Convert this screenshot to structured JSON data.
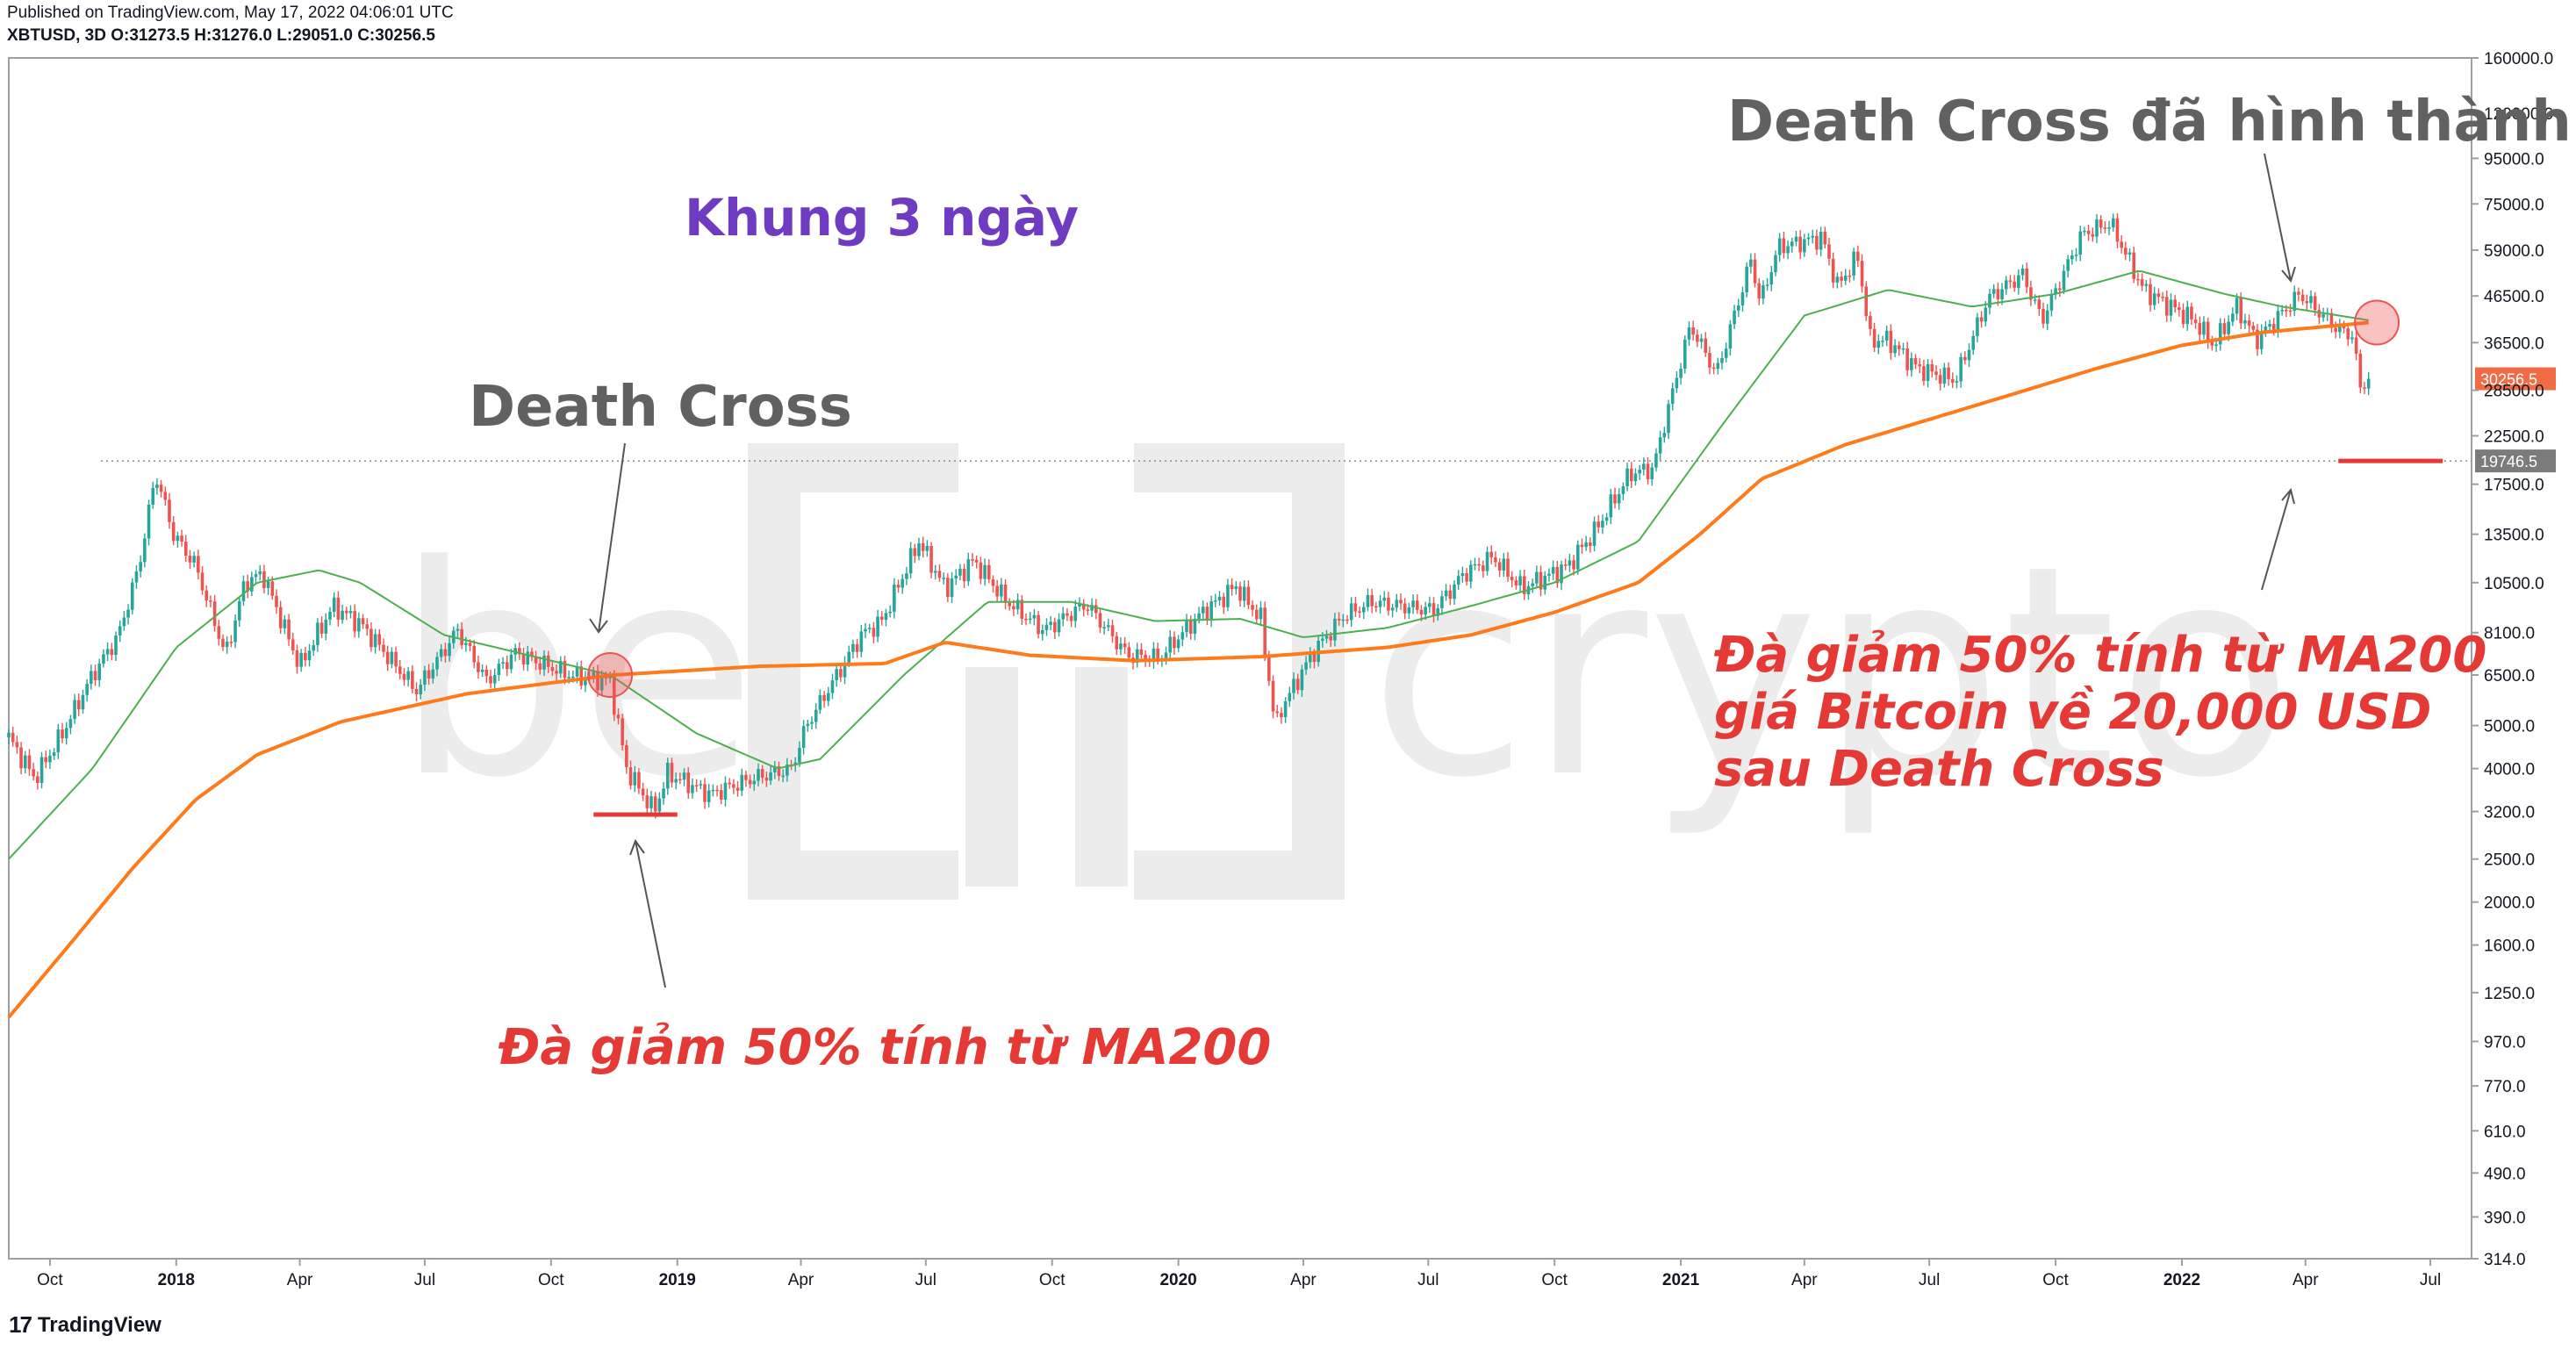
{
  "header": {
    "published": "Published on TradingView.com, May 17, 2022 04:06:01 UTC",
    "ohlc": "XBTUSD, 3D O:31273.5 H:31276.0 L:29051.0 C:30256.5"
  },
  "brand": {
    "name": "TradingView",
    "logo_icon": "tradingview-logo-icon"
  },
  "watermark": {
    "left": "be",
    "right": "crypto"
  },
  "annotations": {
    "timeframe": "Khung 3 ngày",
    "death_cross_1": "Death Cross",
    "death_cross_2": "Death Cross đã hình thành",
    "drop_1": "Đà giảm 50% tính từ MA200",
    "drop_2_line1": "Đà giảm 50% tính từ MA200",
    "drop_2_line2": "giá Bitcoin về 20,000 USD",
    "drop_2_line3": "sau Death Cross"
  },
  "colors": {
    "up": "#26a69a",
    "down": "#ef5350",
    "ma_long": "#ff7a1a",
    "ma_short": "#4caf50",
    "timeframe_text": "#6f3cc1",
    "annotation_red": "#e53935",
    "annotation_grey": "#616161",
    "price_tag": "#ef6c45",
    "level_tag": "#7b7b7b"
  },
  "chart_data": {
    "type": "candlestick",
    "symbol": "XBTUSD",
    "timeframe": "3D",
    "y_scale": "log",
    "ylim": [
      314,
      160000
    ],
    "y_ticks": [
      "160000.0",
      "120000.0",
      "95000.0",
      "75000.0",
      "59000.0",
      "46500.0",
      "36500.0",
      "28500.0",
      "22500.0",
      "17500.0",
      "13500.0",
      "10500.0",
      "8100.0",
      "6500.0",
      "5000.0",
      "4000.0",
      "3200.0",
      "2500.0",
      "2000.0",
      "1600.0",
      "1250.0",
      "970.0",
      "770.0",
      "610.0",
      "490.0",
      "390.0",
      "314.0"
    ],
    "x_range": [
      "2017-09-01",
      "2022-07-31"
    ],
    "x_ticks": [
      {
        "label": "Oct",
        "date": "2017-10-01",
        "bold": false
      },
      {
        "label": "2018",
        "date": "2018-01-01",
        "bold": true
      },
      {
        "label": "Apr",
        "date": "2018-04-01",
        "bold": false
      },
      {
        "label": "Jul",
        "date": "2018-07-01",
        "bold": false
      },
      {
        "label": "Oct",
        "date": "2018-10-01",
        "bold": false
      },
      {
        "label": "2019",
        "date": "2019-01-01",
        "bold": true
      },
      {
        "label": "Apr",
        "date": "2019-04-01",
        "bold": false
      },
      {
        "label": "Jul",
        "date": "2019-07-01",
        "bold": false
      },
      {
        "label": "Oct",
        "date": "2019-10-01",
        "bold": false
      },
      {
        "label": "2020",
        "date": "2020-01-01",
        "bold": true
      },
      {
        "label": "Apr",
        "date": "2020-04-01",
        "bold": false
      },
      {
        "label": "Jul",
        "date": "2020-07-01",
        "bold": false
      },
      {
        "label": "Oct",
        "date": "2020-10-01",
        "bold": false
      },
      {
        "label": "2021",
        "date": "2021-01-01",
        "bold": true
      },
      {
        "label": "Apr",
        "date": "2021-04-01",
        "bold": false
      },
      {
        "label": "Jul",
        "date": "2021-07-01",
        "bold": false
      },
      {
        "label": "Oct",
        "date": "2021-10-01",
        "bold": false
      },
      {
        "label": "2022",
        "date": "2022-01-01",
        "bold": true
      },
      {
        "label": "Apr",
        "date": "2022-04-01",
        "bold": false
      },
      {
        "label": "Jul",
        "date": "2022-07-01",
        "bold": false
      }
    ],
    "last_price": {
      "value": 30256.5,
      "label": "30256.5"
    },
    "support_level": {
      "value": 19746.5,
      "label": "19746.5"
    },
    "price_path": [
      [
        "2017-09-01",
        4700
      ],
      [
        "2017-09-20",
        3800
      ],
      [
        "2017-10-10",
        4800
      ],
      [
        "2017-11-01",
        6500
      ],
      [
        "2017-11-20",
        8000
      ],
      [
        "2017-12-05",
        11500
      ],
      [
        "2017-12-17",
        18500
      ],
      [
        "2017-12-30",
        13500
      ],
      [
        "2018-01-15",
        11500
      ],
      [
        "2018-02-06",
        7200
      ],
      [
        "2018-02-20",
        10500
      ],
      [
        "2018-03-05",
        11000
      ],
      [
        "2018-04-01",
        6800
      ],
      [
        "2018-04-25",
        9300
      ],
      [
        "2018-05-15",
        8500
      ],
      [
        "2018-06-25",
        6000
      ],
      [
        "2018-07-25",
        8200
      ],
      [
        "2018-08-15",
        6300
      ],
      [
        "2018-09-05",
        7300
      ],
      [
        "2018-10-15",
        6500
      ],
      [
        "2018-11-13",
        6300
      ],
      [
        "2018-11-25",
        4000
      ],
      [
        "2018-12-15",
        3200
      ],
      [
        "2018-12-25",
        3900
      ],
      [
        "2019-01-25",
        3500
      ],
      [
        "2019-02-25",
        3800
      ],
      [
        "2019-03-25",
        4000
      ],
      [
        "2019-04-05",
        5000
      ],
      [
        "2019-05-15",
        8000
      ],
      [
        "2019-05-30",
        8600
      ],
      [
        "2019-06-26",
        13000
      ],
      [
        "2019-07-15",
        10200
      ],
      [
        "2019-08-05",
        11800
      ],
      [
        "2019-08-28",
        9600
      ],
      [
        "2019-09-25",
        8200
      ],
      [
        "2019-10-26",
        9400
      ],
      [
        "2019-11-25",
        7200
      ],
      [
        "2019-12-18",
        7100
      ],
      [
        "2020-01-15",
        8800
      ],
      [
        "2020-02-12",
        10300
      ],
      [
        "2020-03-01",
        8700
      ],
      [
        "2020-03-12",
        4900
      ],
      [
        "2020-03-15",
        5400
      ],
      [
        "2020-04-08",
        7300
      ],
      [
        "2020-04-30",
        8800
      ],
      [
        "2020-05-20",
        9500
      ],
      [
        "2020-07-05",
        9100
      ],
      [
        "2020-07-27",
        11000
      ],
      [
        "2020-08-17",
        12000
      ],
      [
        "2020-09-07",
        10200
      ],
      [
        "2020-10-10",
        11400
      ],
      [
        "2020-10-31",
        13800
      ],
      [
        "2020-11-25",
        18500
      ],
      [
        "2020-12-12",
        19000
      ],
      [
        "2020-12-20",
        24000
      ],
      [
        "2021-01-08",
        40000
      ],
      [
        "2021-01-27",
        31000
      ],
      [
        "2021-02-21",
        56000
      ],
      [
        "2021-02-28",
        45000
      ],
      [
        "2021-03-13",
        60000
      ],
      [
        "2021-04-14",
        63000
      ],
      [
        "2021-04-25",
        49000
      ],
      [
        "2021-05-10",
        57000
      ],
      [
        "2021-05-19",
        37000
      ],
      [
        "2021-06-01",
        37000
      ],
      [
        "2021-06-22",
        32000
      ],
      [
        "2021-07-20",
        30000
      ],
      [
        "2021-08-13",
        46000
      ],
      [
        "2021-09-07",
        52000
      ],
      [
        "2021-09-21",
        41000
      ],
      [
        "2021-10-20",
        64000
      ],
      [
        "2021-11-10",
        68000
      ],
      [
        "2021-12-04",
        48000
      ],
      [
        "2022-01-10",
        41000
      ],
      [
        "2022-01-24",
        36000
      ],
      [
        "2022-02-10",
        44000
      ],
      [
        "2022-02-24",
        37000
      ],
      [
        "2022-03-28",
        47000
      ],
      [
        "2022-04-25",
        39000
      ],
      [
        "2022-05-05",
        38000
      ],
      [
        "2022-05-11",
        29000
      ],
      [
        "2022-05-17",
        30256.5
      ]
    ],
    "ma200_path": [
      [
        "2017-09-01",
        1100
      ],
      [
        "2017-10-15",
        1600
      ],
      [
        "2017-12-01",
        2400
      ],
      [
        "2018-01-15",
        3400
      ],
      [
        "2018-03-01",
        4300
      ],
      [
        "2018-05-01",
        5100
      ],
      [
        "2018-08-01",
        5900
      ],
      [
        "2018-11-15",
        6500
      ],
      [
        "2019-03-01",
        6800
      ],
      [
        "2019-06-01",
        6900
      ],
      [
        "2019-07-15",
        7700
      ],
      [
        "2019-09-15",
        7200
      ],
      [
        "2019-12-01",
        7000
      ],
      [
        "2020-03-01",
        7150
      ],
      [
        "2020-06-01",
        7500
      ],
      [
        "2020-08-01",
        8000
      ],
      [
        "2020-10-01",
        9000
      ],
      [
        "2020-12-01",
        10500
      ],
      [
        "2021-01-15",
        13500
      ],
      [
        "2021-03-01",
        18000
      ],
      [
        "2021-05-01",
        21500
      ],
      [
        "2021-07-01",
        24500
      ],
      [
        "2021-09-01",
        28000
      ],
      [
        "2021-11-01",
        32000
      ],
      [
        "2022-01-01",
        36000
      ],
      [
        "2022-03-01",
        38500
      ],
      [
        "2022-05-17",
        40500
      ]
    ],
    "ma_short_path": [
      [
        "2017-09-01",
        2500
      ],
      [
        "2017-11-01",
        4000
      ],
      [
        "2018-01-01",
        7500
      ],
      [
        "2018-03-01",
        10500
      ],
      [
        "2018-04-15",
        11200
      ],
      [
        "2018-05-15",
        10500
      ],
      [
        "2018-07-15",
        8000
      ],
      [
        "2018-09-15",
        7200
      ],
      [
        "2018-11-13",
        6500
      ],
      [
        "2019-01-15",
        4800
      ],
      [
        "2019-03-15",
        4000
      ],
      [
        "2019-04-15",
        4200
      ],
      [
        "2019-06-15",
        6500
      ],
      [
        "2019-08-15",
        9500
      ],
      [
        "2019-10-15",
        9500
      ],
      [
        "2019-12-15",
        8600
      ],
      [
        "2020-02-15",
        8700
      ],
      [
        "2020-04-01",
        7900
      ],
      [
        "2020-06-01",
        8300
      ],
      [
        "2020-08-01",
        9300
      ],
      [
        "2020-10-01",
        10500
      ],
      [
        "2020-12-01",
        13000
      ],
      [
        "2021-02-01",
        24000
      ],
      [
        "2021-04-01",
        42000
      ],
      [
        "2021-06-01",
        48000
      ],
      [
        "2021-08-01",
        44000
      ],
      [
        "2021-10-01",
        47000
      ],
      [
        "2021-12-01",
        53000
      ],
      [
        "2022-02-01",
        47000
      ],
      [
        "2022-03-15",
        44000
      ],
      [
        "2022-05-17",
        41000
      ]
    ],
    "death_cross_points": [
      {
        "date": "2018-11-13",
        "price": 6500
      },
      {
        "date": "2022-05-23",
        "price": 40500
      }
    ],
    "target_lines": [
      {
        "from": "2018-11-01",
        "to": "2019-01-01",
        "price": 3150
      },
      {
        "from": "2022-04-25",
        "to": "2022-07-10",
        "price": 19746.5
      }
    ],
    "xlabel": "",
    "ylabel": ""
  }
}
